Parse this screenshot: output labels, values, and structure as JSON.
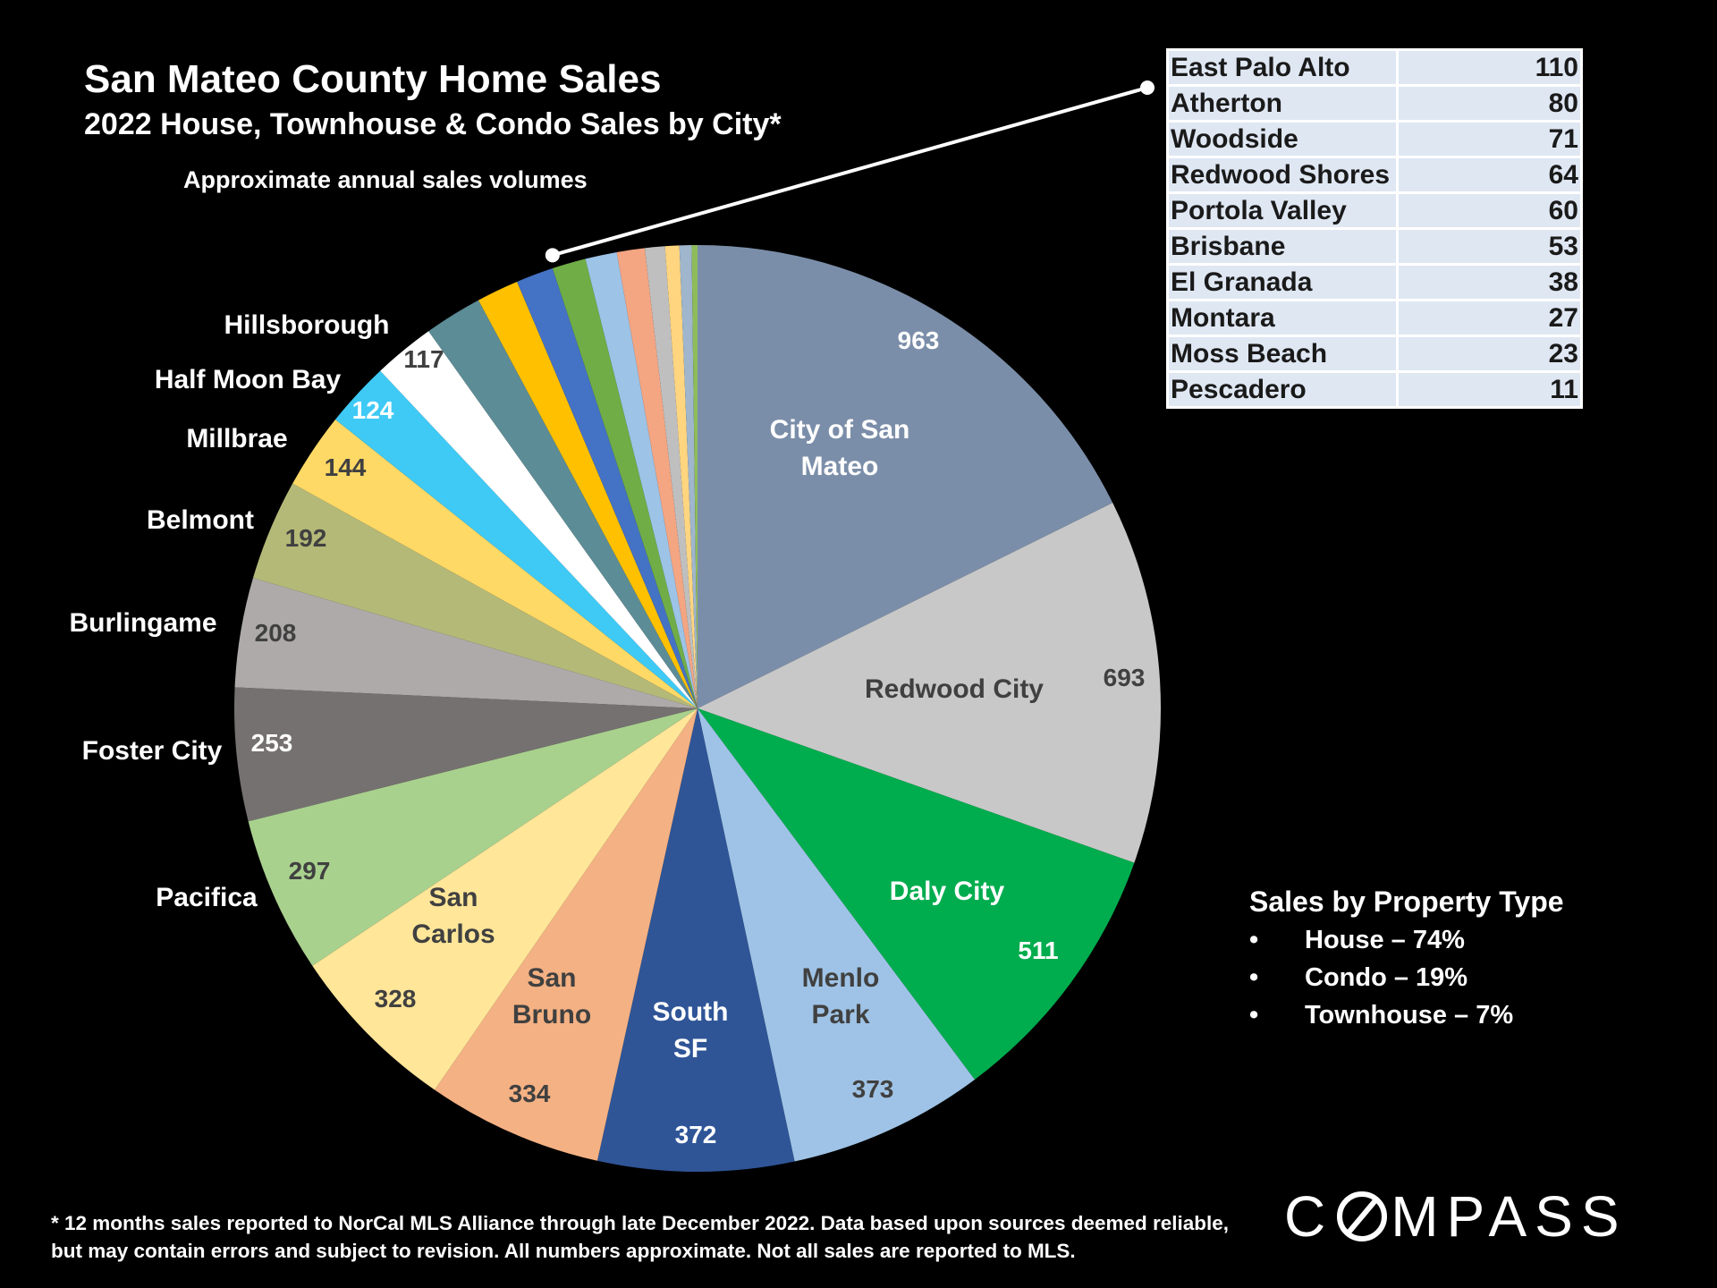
{
  "header": {
    "title": "San Mateo County Home Sales",
    "subtitle": "2022 House, Townhouse & Condo Sales by City*",
    "note": "Approximate annual sales volumes"
  },
  "chart_data": {
    "type": "pie",
    "title": "San Mateo County Home Sales",
    "subtitle": "2022 House, Townhouse & Condo Sales by City*",
    "start_angle_deg": 0,
    "direction": "clockwise",
    "slices": [
      {
        "label": "City of San Mateo",
        "value": 963,
        "color": "#7b8ea9"
      },
      {
        "label": "Redwood City",
        "value": 693,
        "color": "#c8c8c8"
      },
      {
        "label": "Daly City",
        "value": 511,
        "color": "#00ad4e"
      },
      {
        "label": "Menlo Park",
        "value": 373,
        "color": "#9fc3e6"
      },
      {
        "label": "South SF",
        "value": 372,
        "color": "#2f5597"
      },
      {
        "label": "San Bruno",
        "value": 334,
        "color": "#f4b183"
      },
      {
        "label": "San Carlos",
        "value": 328,
        "color": "#ffe699"
      },
      {
        "label": "Pacifica",
        "value": 297,
        "color": "#a9d18e"
      },
      {
        "label": "Foster City",
        "value": 253,
        "color": "#767171"
      },
      {
        "label": "Burlingame",
        "value": 208,
        "color": "#aeaaaa"
      },
      {
        "label": "Belmont",
        "value": 192,
        "color": "#b4b978"
      },
      {
        "label": "Millbrae",
        "value": 144,
        "color": "#ffd966"
      },
      {
        "label": "Half Moon Bay",
        "value": 124,
        "color": "#3fcaf5"
      },
      {
        "label": "Hillsborough",
        "value": 117,
        "color": "#ffffff"
      },
      {
        "label": "East Palo Alto",
        "value": 110,
        "color": "#5c8c96"
      },
      {
        "label": "Atherton",
        "value": 80,
        "color": "#ffc000"
      },
      {
        "label": "Woodside",
        "value": 71,
        "color": "#4472c4"
      },
      {
        "label": "Redwood Shores",
        "value": 64,
        "color": "#70ad47"
      },
      {
        "label": "Portola Valley",
        "value": 60,
        "color": "#9dc3e6"
      },
      {
        "label": "Brisbane",
        "value": 53,
        "color": "#f4a582"
      },
      {
        "label": "El Granada",
        "value": 38,
        "color": "#bfbfbf"
      },
      {
        "label": "Montara",
        "value": 27,
        "color": "#ffd580"
      },
      {
        "label": "Moss Beach",
        "value": 23,
        "color": "#9fb6cd"
      },
      {
        "label": "Pescadero",
        "value": 11,
        "color": "#8fbc5a"
      }
    ]
  },
  "small_cities_table": [
    {
      "city": "East Palo Alto",
      "value": "110"
    },
    {
      "city": "Atherton",
      "value": "80"
    },
    {
      "city": "Woodside",
      "value": "71"
    },
    {
      "city": "Redwood Shores",
      "value": "64"
    },
    {
      "city": "Portola Valley",
      "value": "60"
    },
    {
      "city": "Brisbane",
      "value": "53"
    },
    {
      "city": "El Granada",
      "value": "38"
    },
    {
      "city": "Montara",
      "value": "27"
    },
    {
      "city": "Moss Beach",
      "value": "23"
    },
    {
      "city": "Pescadero",
      "value": "11"
    }
  ],
  "property_type": {
    "title": "Sales by Property Type",
    "bullet": "•",
    "items": [
      "House – 74%",
      "Condo – 19%",
      "Townhouse – 7%"
    ]
  },
  "footnote": "* 12 months sales reported to NorCal MLS Alliance through late December 2022. Data based upon sources deemed reliable, but may contain errors and subject to revision. All numbers approximate. Not all sales are reported to MLS.",
  "logo": {
    "text": "COMPASS",
    "before_o": "C",
    "after_o": "MPASS"
  }
}
